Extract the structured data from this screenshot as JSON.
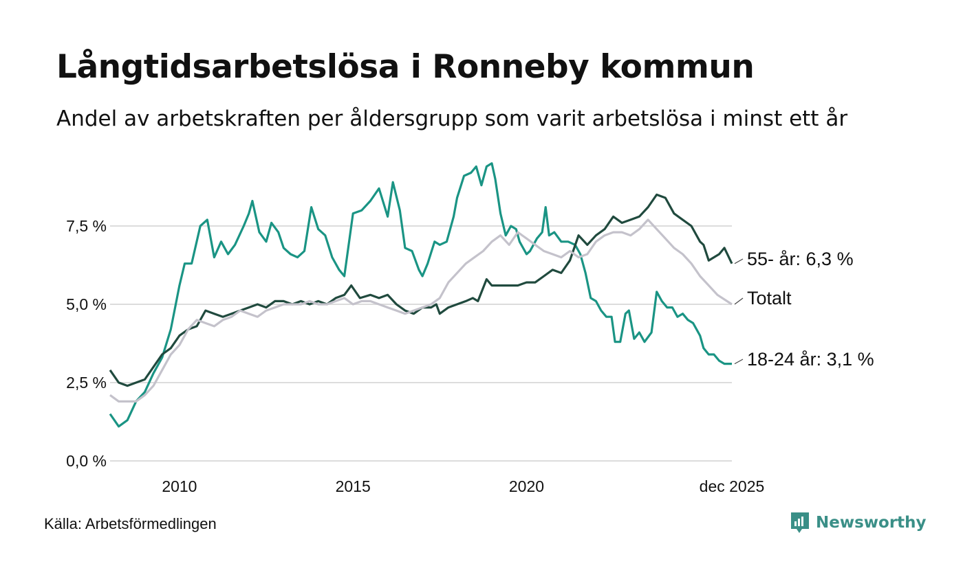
{
  "title": "Långtidsarbetslösa i Ronneby kommun",
  "subtitle": "Andel av arbetskraften per åldersgrupp som varit arbetslösa i minst ett år",
  "source": "Källa: Arbetsförmedlingen",
  "brand": "Newsworthy",
  "colors": {
    "youth": "#1a9484",
    "senior": "#204a3e",
    "total": "#c4c2cb",
    "grid": "#dcdcdc",
    "brand": "#3a8f87"
  },
  "chart_data": {
    "type": "line",
    "title": "Långtidsarbetslösa i Ronneby kommun",
    "ylim": [
      0,
      10
    ],
    "y_ticks": [
      {
        "value": 0,
        "label": "0,0 %"
      },
      {
        "value": 2.5,
        "label": "2,5 %"
      },
      {
        "value": 5,
        "label": "5,0 %"
      },
      {
        "value": 7.5,
        "label": "7,5 %"
      }
    ],
    "xlim": [
      2008.0,
      2025.917
    ],
    "x_ticks": [
      {
        "value": 2010,
        "label": "2010"
      },
      {
        "value": 2015,
        "label": "2015"
      },
      {
        "value": 2020,
        "label": "2020"
      },
      {
        "value": 2025.917,
        "label": "dec 2025"
      }
    ],
    "series": [
      {
        "key": "youth",
        "name": "18-24 år",
        "end_label": "18-24 år: 3,1 %",
        "color": "#1a9484",
        "points": [
          [
            2008.0,
            1.5
          ],
          [
            2008.25,
            1.1
          ],
          [
            2008.5,
            1.3
          ],
          [
            2008.75,
            1.9
          ],
          [
            2009.0,
            2.2
          ],
          [
            2009.25,
            2.8
          ],
          [
            2009.5,
            3.3
          ],
          [
            2009.75,
            4.2
          ],
          [
            2010.0,
            5.6
          ],
          [
            2010.15,
            6.3
          ],
          [
            2010.35,
            6.3
          ],
          [
            2010.6,
            7.5
          ],
          [
            2010.8,
            7.7
          ],
          [
            2011.0,
            6.5
          ],
          [
            2011.2,
            7.0
          ],
          [
            2011.4,
            6.6
          ],
          [
            2011.6,
            6.9
          ],
          [
            2011.85,
            7.5
          ],
          [
            2012.0,
            7.9
          ],
          [
            2012.1,
            8.3
          ],
          [
            2012.3,
            7.3
          ],
          [
            2012.5,
            7.0
          ],
          [
            2012.65,
            7.6
          ],
          [
            2012.85,
            7.3
          ],
          [
            2013.0,
            6.8
          ],
          [
            2013.2,
            6.6
          ],
          [
            2013.4,
            6.5
          ],
          [
            2013.6,
            6.7
          ],
          [
            2013.8,
            8.1
          ],
          [
            2014.0,
            7.4
          ],
          [
            2014.2,
            7.2
          ],
          [
            2014.4,
            6.5
          ],
          [
            2014.6,
            6.1
          ],
          [
            2014.75,
            5.9
          ],
          [
            2015.0,
            7.9
          ],
          [
            2015.25,
            8.0
          ],
          [
            2015.5,
            8.3
          ],
          [
            2015.75,
            8.7
          ],
          [
            2016.0,
            7.8
          ],
          [
            2016.15,
            8.9
          ],
          [
            2016.35,
            8.0
          ],
          [
            2016.5,
            6.8
          ],
          [
            2016.7,
            6.7
          ],
          [
            2016.9,
            6.1
          ],
          [
            2017.0,
            5.9
          ],
          [
            2017.15,
            6.3
          ],
          [
            2017.35,
            7.0
          ],
          [
            2017.5,
            6.9
          ],
          [
            2017.7,
            7.0
          ],
          [
            2017.9,
            7.8
          ],
          [
            2018.0,
            8.4
          ],
          [
            2018.2,
            9.1
          ],
          [
            2018.4,
            9.2
          ],
          [
            2018.55,
            9.4
          ],
          [
            2018.7,
            8.8
          ],
          [
            2018.85,
            9.4
          ],
          [
            2019.0,
            9.5
          ],
          [
            2019.1,
            9.0
          ],
          [
            2019.25,
            7.9
          ],
          [
            2019.4,
            7.2
          ],
          [
            2019.55,
            7.5
          ],
          [
            2019.7,
            7.4
          ],
          [
            2019.8,
            7.0
          ],
          [
            2020.0,
            6.6
          ],
          [
            2020.1,
            6.7
          ],
          [
            2020.3,
            7.1
          ],
          [
            2020.45,
            7.3
          ],
          [
            2020.55,
            8.1
          ],
          [
            2020.65,
            7.2
          ],
          [
            2020.8,
            7.3
          ],
          [
            2021.0,
            7.0
          ],
          [
            2021.2,
            7.0
          ],
          [
            2021.4,
            6.9
          ],
          [
            2021.55,
            6.6
          ],
          [
            2021.7,
            6.0
          ],
          [
            2021.85,
            5.2
          ],
          [
            2022.0,
            5.1
          ],
          [
            2022.15,
            4.8
          ],
          [
            2022.3,
            4.6
          ],
          [
            2022.45,
            4.6
          ],
          [
            2022.55,
            3.8
          ],
          [
            2022.7,
            3.8
          ],
          [
            2022.85,
            4.7
          ],
          [
            2022.95,
            4.8
          ],
          [
            2023.1,
            3.9
          ],
          [
            2023.25,
            4.1
          ],
          [
            2023.4,
            3.8
          ],
          [
            2023.6,
            4.1
          ],
          [
            2023.75,
            5.4
          ],
          [
            2023.9,
            5.1
          ],
          [
            2024.05,
            4.9
          ],
          [
            2024.2,
            4.9
          ],
          [
            2024.35,
            4.6
          ],
          [
            2024.5,
            4.7
          ],
          [
            2024.65,
            4.5
          ],
          [
            2024.8,
            4.4
          ],
          [
            2025.0,
            4.0
          ],
          [
            2025.1,
            3.6
          ],
          [
            2025.25,
            3.4
          ],
          [
            2025.4,
            3.4
          ],
          [
            2025.55,
            3.2
          ],
          [
            2025.7,
            3.1
          ],
          [
            2025.917,
            3.1
          ]
        ]
      },
      {
        "key": "senior",
        "name": "55- år",
        "end_label": "55- år: 6,3 %",
        "color": "#204a3e",
        "points": [
          [
            2008.0,
            2.9
          ],
          [
            2008.25,
            2.5
          ],
          [
            2008.5,
            2.4
          ],
          [
            2008.75,
            2.5
          ],
          [
            2009.0,
            2.6
          ],
          [
            2009.25,
            3.0
          ],
          [
            2009.5,
            3.4
          ],
          [
            2009.75,
            3.6
          ],
          [
            2010.0,
            4.0
          ],
          [
            2010.25,
            4.2
          ],
          [
            2010.5,
            4.3
          ],
          [
            2010.75,
            4.8
          ],
          [
            2011.0,
            4.7
          ],
          [
            2011.25,
            4.6
          ],
          [
            2011.5,
            4.7
          ],
          [
            2011.75,
            4.8
          ],
          [
            2012.0,
            4.9
          ],
          [
            2012.25,
            5.0
          ],
          [
            2012.5,
            4.9
          ],
          [
            2012.75,
            5.1
          ],
          [
            2013.0,
            5.1
          ],
          [
            2013.25,
            5.0
          ],
          [
            2013.5,
            5.1
          ],
          [
            2013.75,
            5.0
          ],
          [
            2014.0,
            5.1
          ],
          [
            2014.25,
            5.0
          ],
          [
            2014.5,
            5.2
          ],
          [
            2014.75,
            5.3
          ],
          [
            2014.95,
            5.6
          ],
          [
            2015.2,
            5.2
          ],
          [
            2015.5,
            5.3
          ],
          [
            2015.75,
            5.2
          ],
          [
            2016.0,
            5.3
          ],
          [
            2016.25,
            5.0
          ],
          [
            2016.5,
            4.8
          ],
          [
            2016.75,
            4.7
          ],
          [
            2017.0,
            4.9
          ],
          [
            2017.25,
            4.9
          ],
          [
            2017.4,
            5.0
          ],
          [
            2017.5,
            4.7
          ],
          [
            2017.75,
            4.9
          ],
          [
            2018.0,
            5.0
          ],
          [
            2018.25,
            5.1
          ],
          [
            2018.45,
            5.2
          ],
          [
            2018.6,
            5.1
          ],
          [
            2018.85,
            5.8
          ],
          [
            2019.0,
            5.6
          ],
          [
            2019.25,
            5.6
          ],
          [
            2019.5,
            5.6
          ],
          [
            2019.75,
            5.6
          ],
          [
            2020.0,
            5.7
          ],
          [
            2020.25,
            5.7
          ],
          [
            2020.5,
            5.9
          ],
          [
            2020.75,
            6.1
          ],
          [
            2021.0,
            6.0
          ],
          [
            2021.25,
            6.4
          ],
          [
            2021.5,
            7.2
          ],
          [
            2021.75,
            6.9
          ],
          [
            2022.0,
            7.2
          ],
          [
            2022.25,
            7.4
          ],
          [
            2022.5,
            7.8
          ],
          [
            2022.75,
            7.6
          ],
          [
            2023.0,
            7.7
          ],
          [
            2023.25,
            7.8
          ],
          [
            2023.5,
            8.1
          ],
          [
            2023.75,
            8.5
          ],
          [
            2024.0,
            8.4
          ],
          [
            2024.25,
            7.9
          ],
          [
            2024.5,
            7.7
          ],
          [
            2024.75,
            7.5
          ],
          [
            2025.0,
            7.0
          ],
          [
            2025.1,
            6.9
          ],
          [
            2025.25,
            6.4
          ],
          [
            2025.4,
            6.5
          ],
          [
            2025.55,
            6.6
          ],
          [
            2025.7,
            6.8
          ],
          [
            2025.917,
            6.3
          ]
        ]
      },
      {
        "key": "total",
        "name": "Totalt",
        "end_label": "Totalt",
        "color": "#c4c2cb",
        "points": [
          [
            2008.0,
            2.1
          ],
          [
            2008.25,
            1.9
          ],
          [
            2008.5,
            1.9
          ],
          [
            2008.75,
            1.9
          ],
          [
            2009.0,
            2.1
          ],
          [
            2009.25,
            2.4
          ],
          [
            2009.5,
            2.9
          ],
          [
            2009.75,
            3.4
          ],
          [
            2010.0,
            3.7
          ],
          [
            2010.25,
            4.2
          ],
          [
            2010.5,
            4.5
          ],
          [
            2010.75,
            4.4
          ],
          [
            2011.0,
            4.3
          ],
          [
            2011.25,
            4.5
          ],
          [
            2011.5,
            4.6
          ],
          [
            2011.75,
            4.8
          ],
          [
            2012.0,
            4.7
          ],
          [
            2012.25,
            4.6
          ],
          [
            2012.5,
            4.8
          ],
          [
            2012.75,
            4.9
          ],
          [
            2013.0,
            5.0
          ],
          [
            2013.25,
            5.0
          ],
          [
            2013.5,
            5.0
          ],
          [
            2013.75,
            5.1
          ],
          [
            2014.0,
            5.0
          ],
          [
            2014.25,
            5.0
          ],
          [
            2014.5,
            5.1
          ],
          [
            2014.75,
            5.2
          ],
          [
            2015.0,
            5.0
          ],
          [
            2015.25,
            5.1
          ],
          [
            2015.5,
            5.1
          ],
          [
            2015.75,
            5.0
          ],
          [
            2016.0,
            4.9
          ],
          [
            2016.25,
            4.8
          ],
          [
            2016.5,
            4.7
          ],
          [
            2016.75,
            4.8
          ],
          [
            2017.0,
            4.9
          ],
          [
            2017.25,
            5.0
          ],
          [
            2017.5,
            5.2
          ],
          [
            2017.75,
            5.7
          ],
          [
            2018.0,
            6.0
          ],
          [
            2018.25,
            6.3
          ],
          [
            2018.5,
            6.5
          ],
          [
            2018.75,
            6.7
          ],
          [
            2019.0,
            7.0
          ],
          [
            2019.25,
            7.2
          ],
          [
            2019.5,
            6.9
          ],
          [
            2019.75,
            7.3
          ],
          [
            2020.0,
            7.1
          ],
          [
            2020.25,
            6.9
          ],
          [
            2020.5,
            6.7
          ],
          [
            2020.75,
            6.6
          ],
          [
            2021.0,
            6.5
          ],
          [
            2021.25,
            6.7
          ],
          [
            2021.5,
            6.5
          ],
          [
            2021.75,
            6.6
          ],
          [
            2022.0,
            7.0
          ],
          [
            2022.25,
            7.2
          ],
          [
            2022.5,
            7.3
          ],
          [
            2022.75,
            7.3
          ],
          [
            2023.0,
            7.2
          ],
          [
            2023.25,
            7.4
          ],
          [
            2023.5,
            7.7
          ],
          [
            2023.75,
            7.4
          ],
          [
            2024.0,
            7.1
          ],
          [
            2024.25,
            6.8
          ],
          [
            2024.5,
            6.6
          ],
          [
            2024.75,
            6.3
          ],
          [
            2025.0,
            5.9
          ],
          [
            2025.25,
            5.6
          ],
          [
            2025.5,
            5.3
          ],
          [
            2025.917,
            5.0
          ]
        ]
      }
    ]
  }
}
